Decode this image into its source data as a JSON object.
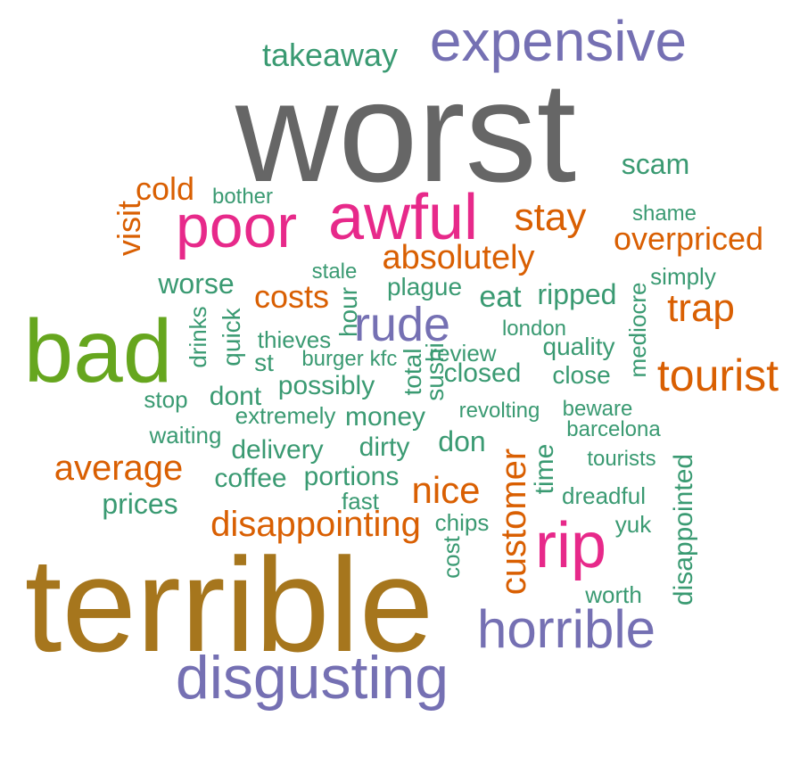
{
  "palette": {
    "gray": "#666666",
    "purple": "#7570b3",
    "teal": "#3a9a72",
    "orange": "#d95f02",
    "magenta": "#e7298a",
    "green": "#66a61e",
    "gold": "#a6761d"
  },
  "words": [
    {
      "text": "worst",
      "color": "gray"
    },
    {
      "text": "expensive",
      "color": "purple"
    },
    {
      "text": "takeaway",
      "color": "teal"
    },
    {
      "text": "scam",
      "color": "teal"
    },
    {
      "text": "cold",
      "color": "orange"
    },
    {
      "text": "bother",
      "color": "teal"
    },
    {
      "text": "visit",
      "color": "orange"
    },
    {
      "text": "poor",
      "color": "magenta"
    },
    {
      "text": "awful",
      "color": "magenta"
    },
    {
      "text": "stay",
      "color": "orange"
    },
    {
      "text": "shame",
      "color": "teal"
    },
    {
      "text": "overpriced",
      "color": "orange"
    },
    {
      "text": "absolutely",
      "color": "orange"
    },
    {
      "text": "stale",
      "color": "teal"
    },
    {
      "text": "worse",
      "color": "teal"
    },
    {
      "text": "plague",
      "color": "teal"
    },
    {
      "text": "simply",
      "color": "teal"
    },
    {
      "text": "costs",
      "color": "orange"
    },
    {
      "text": "eat",
      "color": "teal"
    },
    {
      "text": "ripped",
      "color": "teal"
    },
    {
      "text": "mediocre",
      "color": "teal"
    },
    {
      "text": "trap",
      "color": "orange"
    },
    {
      "text": "hour",
      "color": "teal"
    },
    {
      "text": "rude",
      "color": "purple"
    },
    {
      "text": "bad",
      "color": "green"
    },
    {
      "text": "drinks",
      "color": "teal"
    },
    {
      "text": "quick",
      "color": "teal"
    },
    {
      "text": "thieves",
      "color": "teal"
    },
    {
      "text": "london",
      "color": "teal"
    },
    {
      "text": "quality",
      "color": "teal"
    },
    {
      "text": "review",
      "color": "teal"
    },
    {
      "text": "st",
      "color": "teal"
    },
    {
      "text": "burger",
      "color": "teal"
    },
    {
      "text": "kfc",
      "color": "teal"
    },
    {
      "text": "total",
      "color": "teal"
    },
    {
      "text": "sushi",
      "color": "teal"
    },
    {
      "text": "closed",
      "color": "teal"
    },
    {
      "text": "close",
      "color": "teal"
    },
    {
      "text": "tourist",
      "color": "orange"
    },
    {
      "text": "stop",
      "color": "teal"
    },
    {
      "text": "dont",
      "color": "teal"
    },
    {
      "text": "possibly",
      "color": "teal"
    },
    {
      "text": "extremely",
      "color": "teal"
    },
    {
      "text": "money",
      "color": "teal"
    },
    {
      "text": "revolting",
      "color": "teal"
    },
    {
      "text": "beware",
      "color": "teal"
    },
    {
      "text": "waiting",
      "color": "teal"
    },
    {
      "text": "barcelona",
      "color": "teal"
    },
    {
      "text": "don",
      "color": "teal"
    },
    {
      "text": "delivery",
      "color": "teal"
    },
    {
      "text": "dirty",
      "color": "teal"
    },
    {
      "text": "average",
      "color": "orange"
    },
    {
      "text": "customer",
      "color": "orange"
    },
    {
      "text": "time",
      "color": "teal"
    },
    {
      "text": "tourists",
      "color": "teal"
    },
    {
      "text": "coffee",
      "color": "teal"
    },
    {
      "text": "portions",
      "color": "teal"
    },
    {
      "text": "nice",
      "color": "orange"
    },
    {
      "text": "disappointed",
      "color": "teal"
    },
    {
      "text": "prices",
      "color": "teal"
    },
    {
      "text": "fast",
      "color": "teal"
    },
    {
      "text": "dreadful",
      "color": "teal"
    },
    {
      "text": "disappointing",
      "color": "orange"
    },
    {
      "text": "chips",
      "color": "teal"
    },
    {
      "text": "yuk",
      "color": "teal"
    },
    {
      "text": "rip",
      "color": "magenta"
    },
    {
      "text": "cost",
      "color": "teal"
    },
    {
      "text": "worth",
      "color": "teal"
    },
    {
      "text": "terrible",
      "color": "gold"
    },
    {
      "text": "horrible",
      "color": "purple"
    },
    {
      "text": "disgusting",
      "color": "purple"
    }
  ]
}
